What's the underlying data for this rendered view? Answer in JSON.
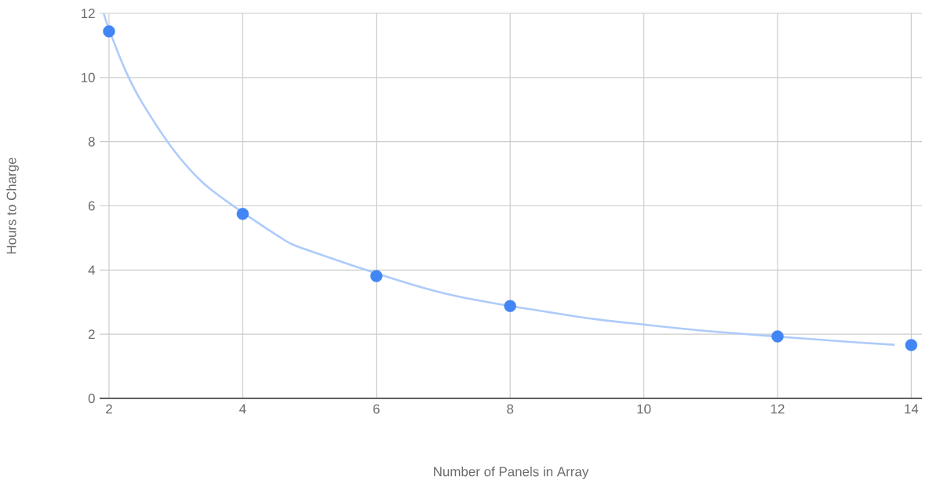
{
  "chart_data": {
    "type": "scatter",
    "xlabel": "Number of Panels in Array",
    "ylabel": "Hours to Charge",
    "xlim": [
      1.86,
      14.16
    ],
    "ylim": [
      0,
      12
    ],
    "xticks": [
      2,
      4,
      6,
      8,
      10,
      12,
      14
    ],
    "yticks": [
      0,
      2,
      4,
      6,
      8,
      10,
      12
    ],
    "grid": true,
    "series": [
      {
        "type": "line",
        "color": "#aecbfa",
        "line_style": "solid",
        "x": [
          1.92,
          2,
          2.25,
          2.5,
          3,
          3.5,
          4.5,
          5,
          7,
          9,
          10,
          11,
          13,
          13.75
        ],
        "values": [
          12,
          11.5,
          10.2,
          9.2,
          7.65,
          6.55,
          5.1,
          4.6,
          3.28,
          2.55,
          2.3,
          2.09,
          1.77,
          1.67
        ]
      },
      {
        "color": "#4285f4",
        "marker": "circle",
        "x": [
          2,
          4,
          6,
          8,
          12,
          14
        ],
        "values": [
          11.44,
          5.75,
          3.81,
          2.88,
          1.93,
          1.66
        ]
      }
    ]
  }
}
